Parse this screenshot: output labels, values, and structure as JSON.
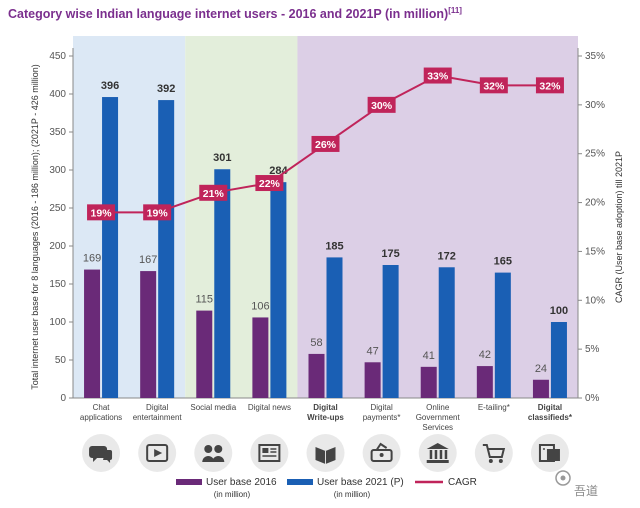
{
  "title": "Category wise Indian language internet users - 2016 and 2021P (in million)",
  "title_ref": "[11]",
  "watermark": "吾道",
  "colors": {
    "bar2016": "#6a2a78",
    "bar2021": "#1a5fb4",
    "cagr": "#c0245a",
    "bg_blue": "#dce8f5",
    "bg_green": "#e3eedb",
    "bg_purple": "#dccfe6"
  },
  "chart_data": {
    "type": "bar",
    "title": "Category wise Indian language internet users - 2016 and 2021P (in million)",
    "ylabel": "Total internet user base for 8 languages (2016 - 186 million); (2021P - 426 million)",
    "y2label": "CAGR (User base adoption) till 2021P",
    "ylim": [
      0,
      450
    ],
    "y2lim": [
      0,
      35
    ],
    "yticks": [
      0,
      50,
      100,
      150,
      200,
      250,
      300,
      350,
      400,
      450
    ],
    "y2ticks": [
      "0%",
      "5%",
      "10%",
      "15%",
      "20%",
      "25%",
      "30%",
      "35%"
    ],
    "categories": [
      {
        "line1": "Chat",
        "line2": "applications",
        "line3": "",
        "bold": false,
        "icon": "chat-icon"
      },
      {
        "line1": "Digital",
        "line2": "entertainment",
        "line3": "",
        "bold": false,
        "icon": "video-icon"
      },
      {
        "line1": "Social media",
        "line2": "",
        "line3": "",
        "bold": false,
        "icon": "people-icon"
      },
      {
        "line1": "Digital news",
        "line2": "",
        "line3": "",
        "bold": false,
        "icon": "newspaper-icon"
      },
      {
        "line1": "Digital",
        "line2": "Write-ups",
        "line3": "",
        "bold": true,
        "icon": "book-icon"
      },
      {
        "line1": "Digital",
        "line2": "payments*",
        "line3": "",
        "bold": false,
        "icon": "payment-icon"
      },
      {
        "line1": "Online",
        "line2": "Government",
        "line3": "Services",
        "bold": false,
        "icon": "government-icon"
      },
      {
        "line1": "E-tailing*",
        "line2": "",
        "line3": "",
        "bold": false,
        "icon": "cart-icon"
      },
      {
        "line1": "Digital",
        "line2": "classifieds*",
        "line3": "",
        "bold": true,
        "icon": "classifieds-icon"
      }
    ],
    "series": [
      {
        "name": "User base 2016",
        "sub": "(in million)",
        "values": [
          169,
          167,
          115,
          106,
          58,
          47,
          41,
          42,
          24
        ]
      },
      {
        "name": "User base 2021 (P)",
        "sub": "(in million)",
        "values": [
          396,
          392,
          301,
          284,
          185,
          175,
          172,
          165,
          100
        ]
      },
      {
        "name": "CAGR",
        "sub": "",
        "values": [
          19,
          19,
          21,
          22,
          26,
          30,
          33,
          32,
          32
        ],
        "labels": [
          "19%",
          "19%",
          "21%",
          "22%",
          "26%",
          "30%",
          "33%",
          "32%",
          "32%"
        ]
      }
    ]
  }
}
